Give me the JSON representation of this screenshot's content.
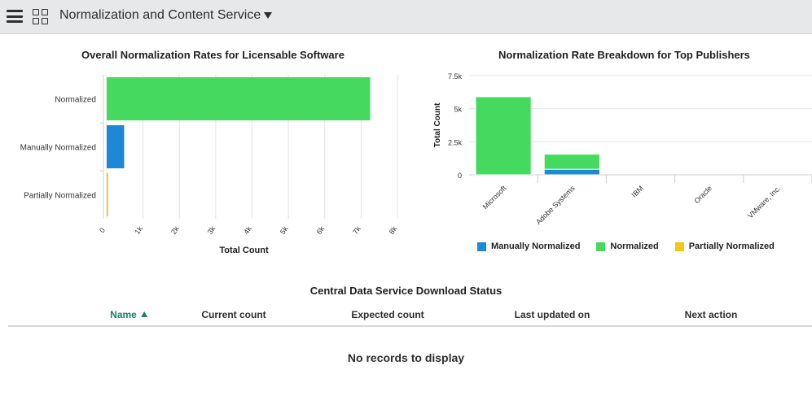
{
  "header": {
    "menu_icon": "hamburger-menu-icon",
    "grid_icon": "app-grid-icon",
    "title": "Normalization and Content Service",
    "dropdown_icon": "caret-down-icon"
  },
  "colors": {
    "normalized": "#46d960",
    "manually_normalized": "#1e88d6",
    "partially_normalized": "#f5c518",
    "accent": "#1a7f6b"
  },
  "chart_data": [
    {
      "type": "bar",
      "orientation": "horizontal",
      "title": "Overall Normalization Rates for Licensable Software",
      "categories": [
        "Normalized",
        "Manually Normalized",
        "Partially Normalized"
      ],
      "values": [
        7250,
        480,
        40
      ],
      "colors": [
        "#46d960",
        "#1e88d6",
        "#f5c518"
      ],
      "xlabel": "Total Count",
      "ylabel": "",
      "xlim": [
        0,
        8000
      ],
      "ticks": [
        0,
        1000,
        2000,
        3000,
        4000,
        5000,
        6000,
        7000,
        8000
      ],
      "tick_labels": [
        "0",
        "1k",
        "2k",
        "3k",
        "4k",
        "5k",
        "6k",
        "7k",
        "8k"
      ],
      "grid": true
    },
    {
      "type": "bar",
      "stacked": true,
      "title": "Normalization Rate Breakdown for Top Publishers",
      "categories": [
        "Microsoft",
        "Adobe Systems",
        "IBM",
        "Oracle",
        "VMware, Inc."
      ],
      "series": [
        {
          "name": "Manually Normalized",
          "color": "#1e88d6",
          "values": [
            0,
            420,
            0,
            0,
            0
          ]
        },
        {
          "name": "Normalized",
          "color": "#46d960",
          "values": [
            5900,
            1140,
            0,
            0,
            0
          ]
        },
        {
          "name": "Partially Normalized",
          "color": "#f5c518",
          "values": [
            0,
            0,
            0,
            0,
            0
          ]
        }
      ],
      "xlabel": "",
      "ylabel": "Total Count",
      "ylim": [
        0,
        7500
      ],
      "ticks": [
        0,
        2500,
        5000,
        7500
      ],
      "tick_labels": [
        "0",
        "2.5k",
        "5k",
        "7.5k"
      ],
      "grid": true,
      "legend_position": "bottom"
    }
  ],
  "table": {
    "title": "Central Data Service Download Status",
    "columns": [
      "Name",
      "Current count",
      "Expected count",
      "Last updated on",
      "Next action"
    ],
    "sorted_column": "Name",
    "sort_direction": "ascending",
    "sort_icon": "sort-ascending-icon",
    "empty_message": "No records to display"
  }
}
